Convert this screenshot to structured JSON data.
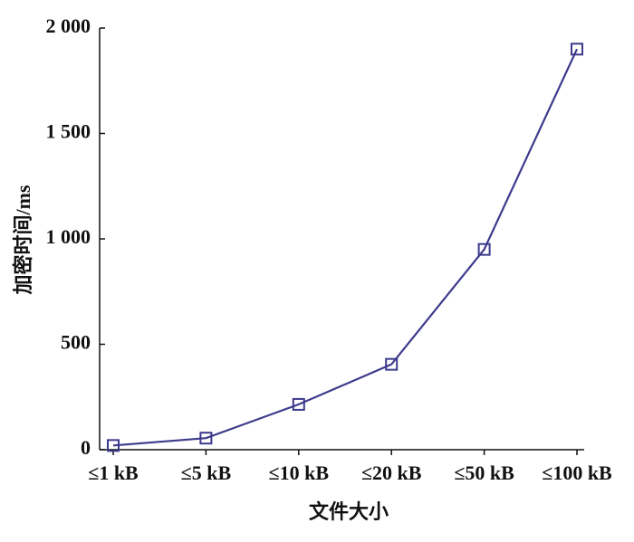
{
  "chart_data": {
    "type": "line",
    "x_label": "文件大小",
    "y_label": "加密时间/ms",
    "categories": [
      "≤1 kB",
      "≤5 kB",
      "≤10 kB",
      "≤20 kB",
      "≤50 kB",
      "≤100 kB"
    ],
    "values": [
      20,
      55,
      215,
      405,
      950,
      1900
    ],
    "color": "#3d3a8c",
    "ylim": [
      0,
      2000
    ],
    "yticks": [
      0,
      500,
      {
        "value": 1000,
        "label": "1 000"
      },
      {
        "value": 1500,
        "label": "1 500"
      },
      {
        "value": 2000,
        "label": "2 000"
      }
    ]
  }
}
